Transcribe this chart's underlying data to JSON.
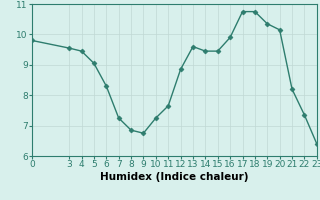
{
  "x": [
    0,
    3,
    4,
    5,
    6,
    7,
    8,
    9,
    10,
    11,
    12,
    13,
    14,
    15,
    16,
    17,
    18,
    19,
    20,
    21,
    22,
    23
  ],
  "y": [
    9.8,
    9.55,
    9.45,
    9.05,
    8.3,
    7.25,
    6.85,
    6.75,
    7.25,
    7.65,
    8.85,
    9.6,
    9.45,
    9.45,
    9.9,
    10.75,
    10.75,
    10.35,
    10.15,
    8.2,
    7.35,
    6.4
  ],
  "line_color": "#2e7d6e",
  "marker": "D",
  "marker_size": 2.5,
  "background_color": "#d8f0ec",
  "grid_color": "#c0d8d4",
  "xlabel": "Humidex (Indice chaleur)",
  "ylabel": "",
  "xlim": [
    0,
    23
  ],
  "ylim": [
    6,
    11
  ],
  "xticks": [
    0,
    3,
    4,
    5,
    6,
    7,
    8,
    9,
    10,
    11,
    12,
    13,
    14,
    15,
    16,
    17,
    18,
    19,
    20,
    21,
    22,
    23
  ],
  "yticks": [
    6,
    7,
    8,
    9,
    10,
    11
  ],
  "tick_fontsize": 6.5,
  "xlabel_fontsize": 7.5,
  "axis_color": "#2e7d6e",
  "line_width": 1.0
}
